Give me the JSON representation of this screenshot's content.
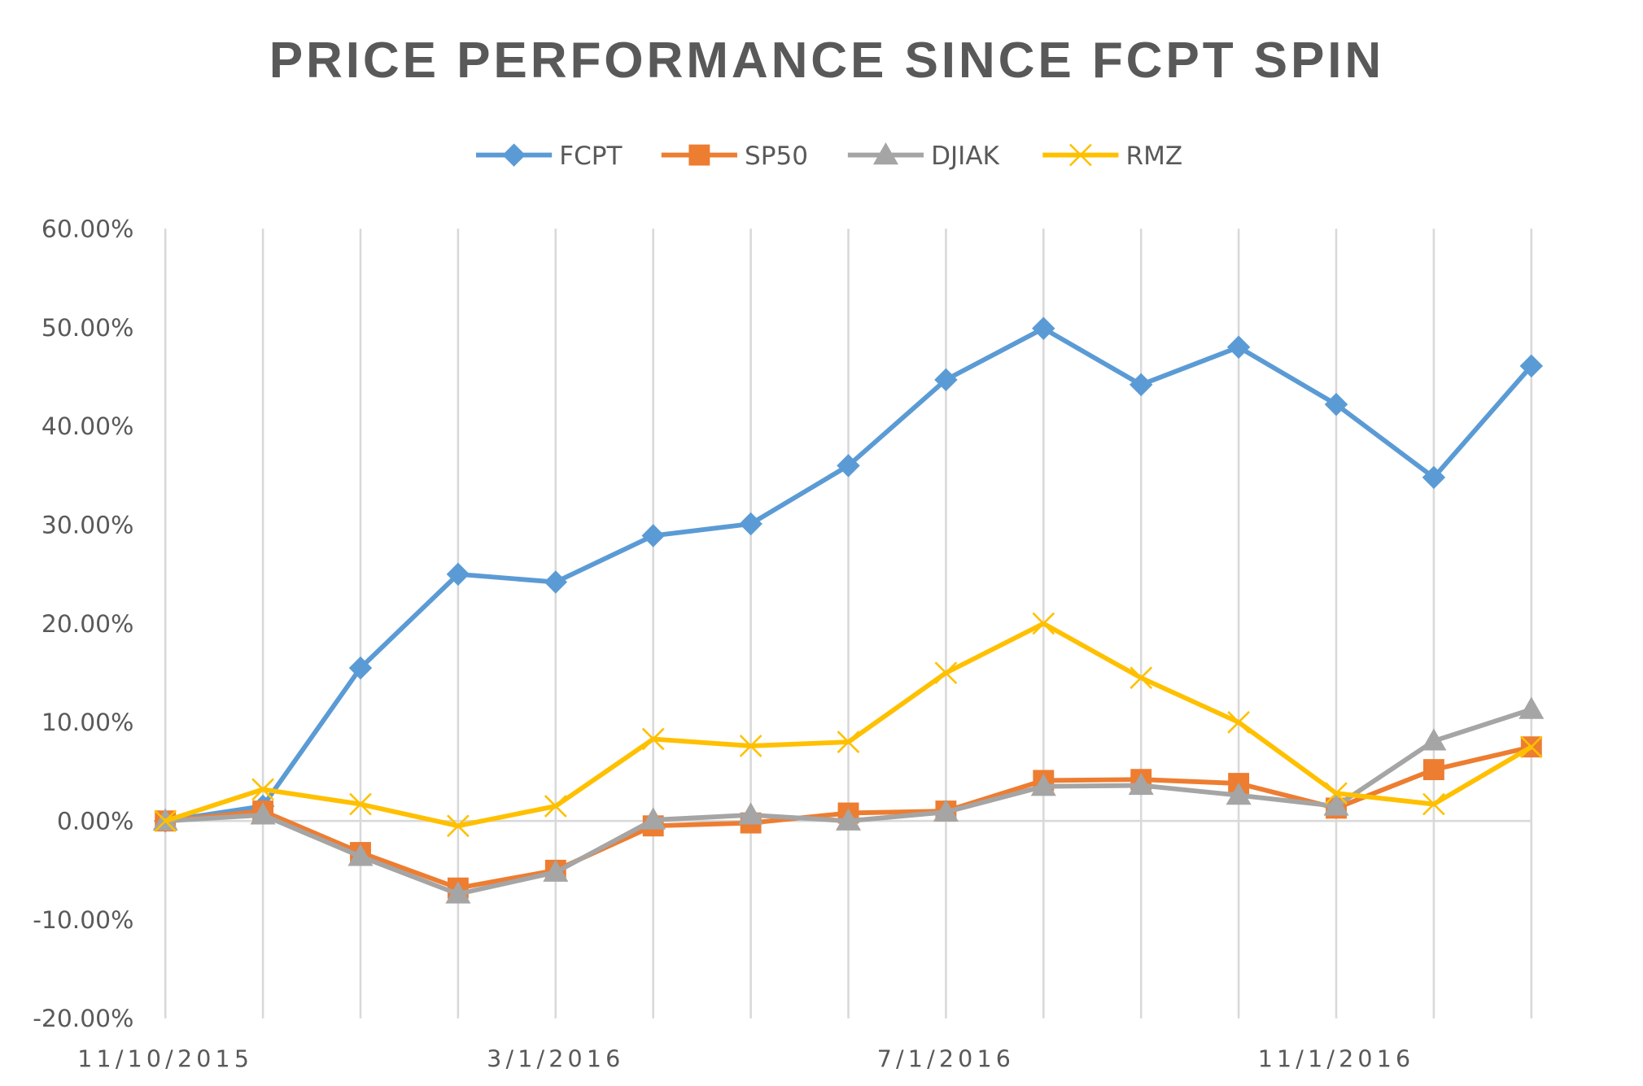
{
  "chart_data": {
    "type": "line",
    "title": "PRICE PERFORMANCE SINCE FCPT SPIN",
    "xlabel": "",
    "ylabel": "",
    "categories": [
      "11/10/2015",
      "",
      "",
      "",
      "3/1/2016",
      "",
      "",
      "",
      "7/1/2016",
      "",
      "",
      "",
      "11/1/2016",
      "",
      ""
    ],
    "ylim": [
      -0.2,
      0.6
    ],
    "yticks": [
      0.6,
      0.5,
      0.4,
      0.3,
      0.2,
      0.1,
      0.0,
      -0.1,
      -0.2
    ],
    "ytick_labels": [
      "60.00%",
      "50.00%",
      "40.00%",
      "30.00%",
      "20.00%",
      "10.00%",
      "0.00%",
      "-10.00%",
      "-20.00%"
    ],
    "grid": "vertical",
    "legend_position": "top",
    "series": [
      {
        "name": "FCPT",
        "color": "#5B9BD5",
        "marker": "diamond",
        "values": [
          0.0,
          0.015,
          0.155,
          0.25,
          0.242,
          0.289,
          0.301,
          0.36,
          0.447,
          0.499,
          0.442,
          0.48,
          0.422,
          0.348,
          0.461
        ]
      },
      {
        "name": "SP50",
        "color": "#ED7D31",
        "marker": "square",
        "values": [
          0.0,
          0.01,
          -0.032,
          -0.068,
          -0.05,
          -0.005,
          -0.002,
          0.008,
          0.01,
          0.041,
          0.042,
          0.038,
          0.013,
          0.052,
          0.075
        ]
      },
      {
        "name": "DJIAK",
        "color": "#A5A5A5",
        "marker": "triangle",
        "values": [
          0.0,
          0.006,
          -0.036,
          -0.074,
          -0.052,
          0.001,
          0.006,
          0.0,
          0.009,
          0.035,
          0.036,
          0.026,
          0.015,
          0.081,
          0.113
        ]
      },
      {
        "name": "RMZ",
        "color": "#FFC000",
        "marker": "x",
        "values": [
          0.0,
          0.032,
          0.017,
          -0.005,
          0.015,
          0.083,
          0.076,
          0.08,
          0.15,
          0.2,
          0.145,
          0.1,
          0.028,
          0.017,
          0.075
        ]
      }
    ]
  }
}
